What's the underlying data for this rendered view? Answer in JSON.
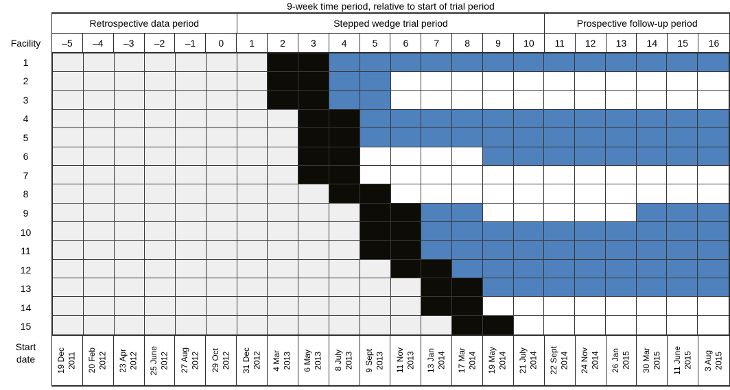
{
  "title": "9-week time period, relative to start of trial period",
  "axis": {
    "facility_label": "Facility",
    "start_date_label_line1": "Start",
    "start_date_label_line2": "date"
  },
  "period_groups": [
    {
      "label": "Retrospective data period",
      "span": 6
    },
    {
      "label": "Stepped wedge trial period",
      "span": 10
    },
    {
      "label": "Prospective follow-up period",
      "span": 6
    }
  ],
  "periods": [
    "–5",
    "–4",
    "–3",
    "–2",
    "–1",
    "0",
    "1",
    "2",
    "3",
    "4",
    "5",
    "6",
    "7",
    "8",
    "9",
    "10",
    "11",
    "12",
    "13",
    "14",
    "15",
    "16"
  ],
  "colors": {
    "G": "#efefef",
    "K": "#0d0c07",
    "B": "#4f81bd",
    "W": "#ffffff",
    "grid_line": "#383838"
  },
  "chart_data": {
    "type": "heatmap",
    "title": "9-week time period, relative to start of trial period",
    "xlabel": "9-week time period, relative to start of trial period",
    "ylabel": "Facility",
    "columns": [
      -5,
      -4,
      -3,
      -2,
      -1,
      0,
      1,
      2,
      3,
      4,
      5,
      6,
      7,
      8,
      9,
      10,
      11,
      12,
      13,
      14,
      15,
      16
    ],
    "cell_codes": {
      "G": "light-gray",
      "K": "black",
      "B": "blue",
      "W": "white"
    },
    "rows": [
      {
        "facility": "1",
        "pattern": "GGGGGGGKKBBBBBBBBBBBBB"
      },
      {
        "facility": "2",
        "pattern": "GGGGGGGKKBBWWWWWWWWWWW"
      },
      {
        "facility": "3",
        "pattern": "GGGGGGGKKBBWWWWWWWWWWW"
      },
      {
        "facility": "4",
        "pattern": "GGGGGGGGKKBBBBBBBBBBBB"
      },
      {
        "facility": "5",
        "pattern": "GGGGGGGGKKBBBBBBBBBBBB"
      },
      {
        "facility": "6",
        "pattern": "GGGGGGGGKKWWWWBBBBBBBB"
      },
      {
        "facility": "7",
        "pattern": "GGGGGGGGKKWWWWWWWWWWWW"
      },
      {
        "facility": "8",
        "pattern": "GGGGGGGGGKKWWWWWWWWWWW"
      },
      {
        "facility": "9",
        "pattern": "GGGGGGGGGGKKBBWWWWWBBB"
      },
      {
        "facility": "10",
        "pattern": "GGGGGGGGGGKKBBBBBBBBBB"
      },
      {
        "facility": "11",
        "pattern": "GGGGGGGGGGKKBBBBBBBBBB"
      },
      {
        "facility": "12",
        "pattern": "GGGGGGGGGGGKKBBBBBBBBB"
      },
      {
        "facility": "13",
        "pattern": "GGGGGGGGGGGGKKBBBBBBBB"
      },
      {
        "facility": "14",
        "pattern": "GGGGGGGGGGGGKKWWWWWWWW"
      },
      {
        "facility": "15",
        "pattern": "GGGGGGGGGGGGGKKWWWWWWW"
      }
    ],
    "start_dates": [
      [
        "19 Dec",
        "2011"
      ],
      [
        "20 Feb",
        "2012"
      ],
      [
        "23 Apr",
        "2012"
      ],
      [
        "25 June",
        "2012"
      ],
      [
        "27 Aug",
        "2012"
      ],
      [
        "29 Oct",
        "2012"
      ],
      [
        "31 Dec",
        "2012"
      ],
      [
        "4 Mar",
        "2013"
      ],
      [
        "6 May",
        "2013"
      ],
      [
        "8 July",
        "2013"
      ],
      [
        "9 Sept",
        "2013"
      ],
      [
        "11 Nov",
        "2013"
      ],
      [
        "13 Jan",
        "2014"
      ],
      [
        "17 Mar",
        "2014"
      ],
      [
        "19 May",
        "2014"
      ],
      [
        "21 July",
        "2014"
      ],
      [
        "22 Sept",
        "2014"
      ],
      [
        "24 Nov",
        "2014"
      ],
      [
        "26 Jan",
        "2015"
      ],
      [
        "30 Mar",
        "2015"
      ],
      [
        "11 June",
        "2015"
      ],
      [
        "3 Aug",
        "2015"
      ]
    ]
  }
}
